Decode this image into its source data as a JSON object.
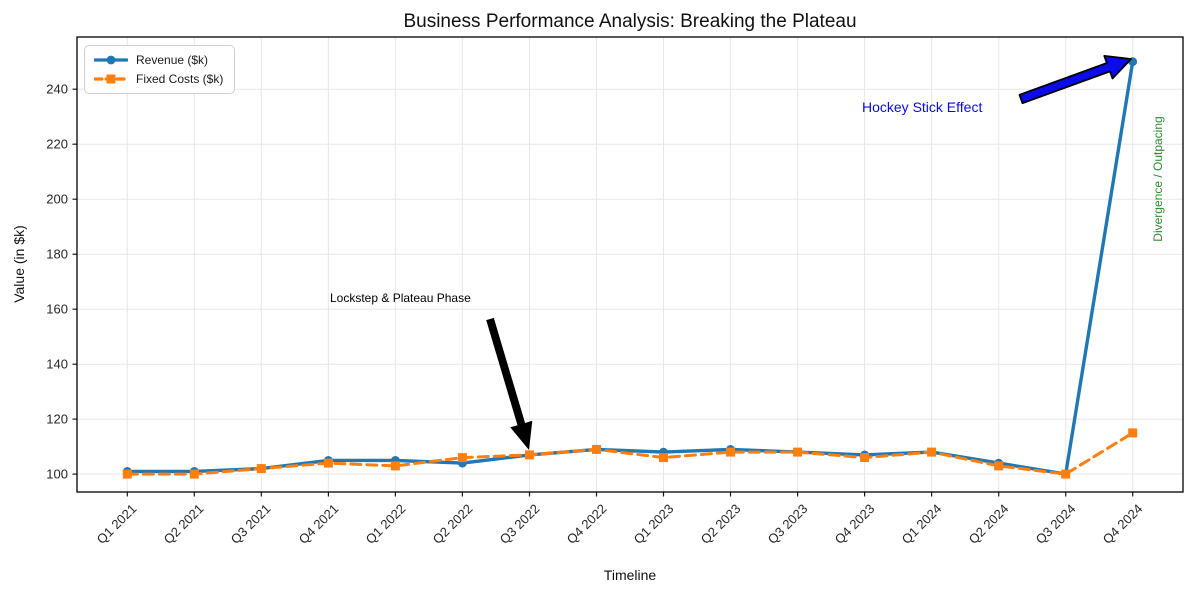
{
  "title": "Business Performance Analysis: Breaking the Plateau",
  "axes": {
    "x_label": "Timeline",
    "y_label": "Value (in $k)"
  },
  "legend": {
    "items": [
      {
        "label": "Revenue ($k)",
        "color": "#1f77b4",
        "marker": "circle",
        "dash": "solid"
      },
      {
        "label": "Fixed Costs ($k)",
        "color": "#ff7f0e",
        "marker": "square",
        "dash": "dashed"
      }
    ]
  },
  "annotations": {
    "lockstep": {
      "text": "Lockstep & Plateau Phase",
      "color": "#000000",
      "arrow_color": "#000000"
    },
    "hockey": {
      "text": "Hockey Stick Effect",
      "color": "#0b0be0",
      "arrow_color": "#0b0beb"
    },
    "divergence": {
      "text": "Divergence / Outpacing",
      "color": "#2d8c2d"
    }
  },
  "chart_data": {
    "type": "line",
    "title": "Business Performance Analysis: Breaking the Plateau",
    "xlabel": "Timeline",
    "ylabel": "Value (in $k)",
    "categories": [
      "Q1 2021",
      "Q2 2021",
      "Q3 2021",
      "Q4 2021",
      "Q1 2022",
      "Q2 2022",
      "Q3 2022",
      "Q4 2022",
      "Q1 2023",
      "Q2 2023",
      "Q3 2023",
      "Q4 2023",
      "Q1 2024",
      "Q2 2024",
      "Q3 2024",
      "Q4 2024"
    ],
    "series": [
      {
        "name": "Revenue ($k)",
        "color": "#1f77b4",
        "style": "solid",
        "marker": "circle",
        "values": [
          101,
          101,
          102,
          105,
          105,
          104,
          107,
          109,
          108,
          109,
          108,
          107,
          108,
          104,
          100,
          250
        ]
      },
      {
        "name": "Fixed Costs ($k)",
        "color": "#ff7f0e",
        "style": "dashed",
        "marker": "square",
        "values": [
          100,
          100,
          102,
          104,
          103,
          106,
          107,
          109,
          106,
          108,
          108,
          106,
          108,
          103,
          100,
          115
        ]
      }
    ],
    "yticks": [
      100,
      120,
      140,
      160,
      180,
      200,
      220,
      240
    ],
    "ylim": [
      93.5,
      259
    ],
    "grid": true,
    "legend_position": "upper left"
  }
}
